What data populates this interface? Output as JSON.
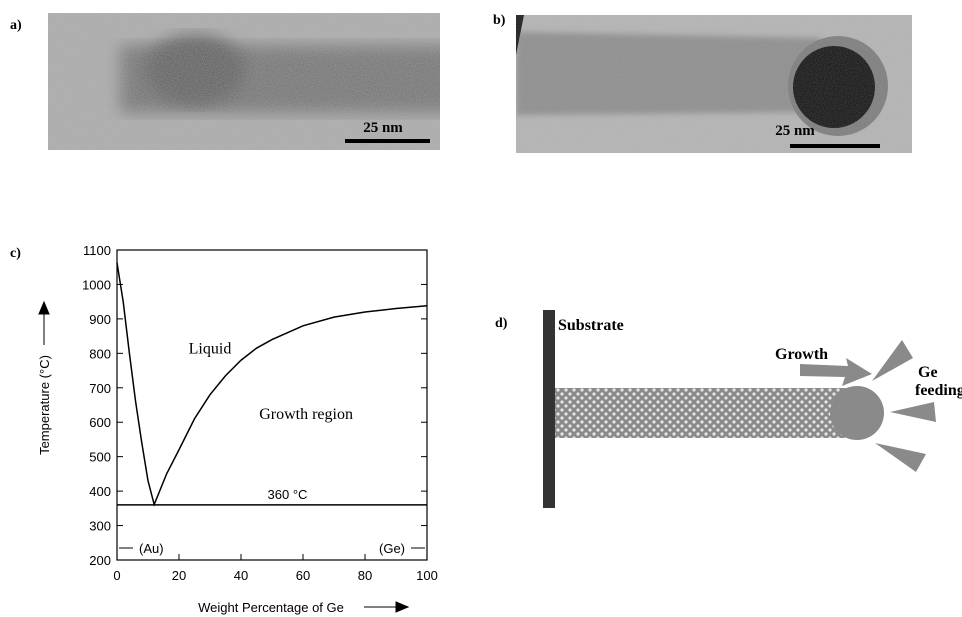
{
  "panels": {
    "a": {
      "label": "a)",
      "scale": "25 nm"
    },
    "b": {
      "label": "b)",
      "scale": "25 nm"
    },
    "c": {
      "label": "c)"
    },
    "d": {
      "label": "d)",
      "substrate": "Substrate",
      "growth": "Growth",
      "feeding": [
        "Ge",
        "feeding"
      ]
    }
  },
  "chart_data": {
    "type": "line",
    "xlabel": "Weight Percentage of Ge",
    "ylabel": "Temperature (°C)",
    "x": [
      0,
      2,
      4,
      6,
      8,
      10,
      12,
      16,
      20,
      25,
      30,
      35,
      40,
      45,
      50,
      60,
      70,
      80,
      90,
      100
    ],
    "values": [
      1063,
      950,
      800,
      660,
      540,
      430,
      361,
      450,
      520,
      610,
      680,
      735,
      780,
      815,
      840,
      880,
      905,
      920,
      930,
      938
    ],
    "color": "#000000",
    "xlim": [
      0,
      100
    ],
    "xticks": [
      0,
      20,
      40,
      60,
      80,
      100
    ],
    "ylim": [
      200,
      1100
    ],
    "yticks": [
      200,
      300,
      400,
      500,
      600,
      700,
      800,
      900,
      1000,
      1100
    ],
    "eutectic": {
      "value": 360,
      "label": "360 °C"
    },
    "annotations": [
      "Liquid",
      "Growth region",
      "(Au)",
      "(Ge)"
    ]
  }
}
